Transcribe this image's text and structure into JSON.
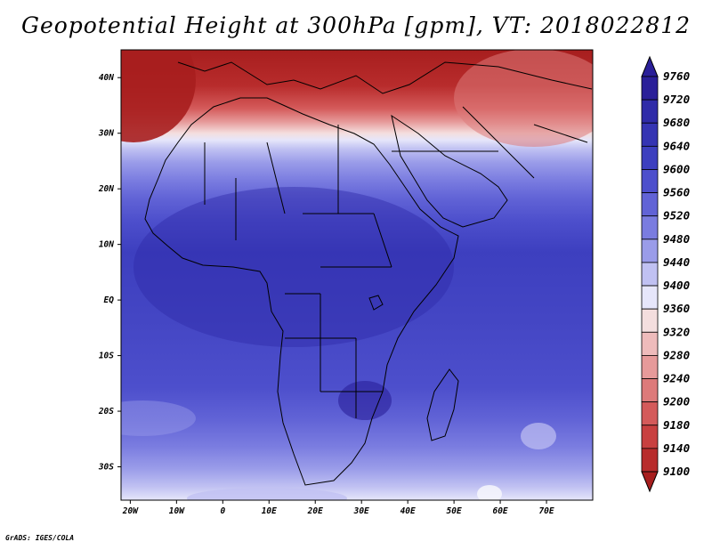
{
  "title": "Geopotential Height at 300hPa [gpm], VT: 2018022812",
  "credit": "GrADS: IGES/COLA",
  "map": {
    "lat_labels": [
      {
        "label": "40N",
        "lat": 40
      },
      {
        "label": "30N",
        "lat": 30
      },
      {
        "label": "20N",
        "lat": 20
      },
      {
        "label": "10N",
        "lat": 10
      },
      {
        "label": "EQ",
        "lat": 0
      },
      {
        "label": "10S",
        "lat": -10
      },
      {
        "label": "20S",
        "lat": -20
      },
      {
        "label": "30S",
        "lat": -30
      }
    ],
    "lon_labels": [
      {
        "label": "20W",
        "lon": -20
      },
      {
        "label": "10W",
        "lon": -10
      },
      {
        "label": "0",
        "lon": 0
      },
      {
        "label": "10E",
        "lon": 10
      },
      {
        "label": "20E",
        "lon": 20
      },
      {
        "label": "30E",
        "lon": 30
      },
      {
        "label": "40E",
        "lon": 40
      },
      {
        "label": "50E",
        "lon": 50
      },
      {
        "label": "60E",
        "lon": 60
      },
      {
        "label": "70E",
        "lon": 70
      }
    ]
  },
  "colorbar": {
    "levels": [
      "9760",
      "9720",
      "9680",
      "9640",
      "9600",
      "9560",
      "9520",
      "9480",
      "9440",
      "9400",
      "9360",
      "9320",
      "9280",
      "9240",
      "9200",
      "9180",
      "9140",
      "9100"
    ],
    "colors": [
      "#2a1f99",
      "#2f2ba8",
      "#3534b3",
      "#3d3fbf",
      "#4d4fcc",
      "#6163d6",
      "#7a7ce0",
      "#9a9ce9",
      "#c0c1f2",
      "#e6e6fa",
      "#f4dede",
      "#eebbbb",
      "#e69a9a",
      "#dd7a7a",
      "#d45a5a",
      "#c84040",
      "#b82c2c",
      "#a71e1e"
    ]
  }
}
